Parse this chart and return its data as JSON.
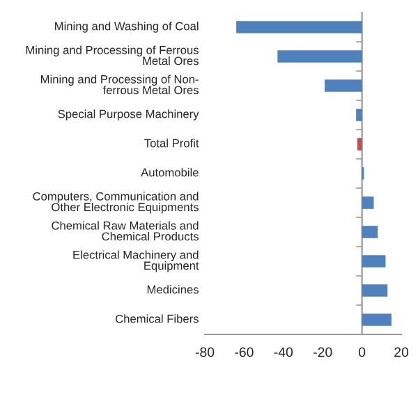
{
  "chart_data": {
    "type": "bar",
    "orientation": "horizontal",
    "categories": [
      "Mining and Washing of Coal",
      "Mining and Processing of Ferrous\nMetal Ores",
      "Mining and Processing of Non-\nferrous Metal Ores",
      "Special Purpose Machinery",
      "Total Profit",
      "Automobile",
      "Computers, Communication and\nOther Electronic Equipments",
      "Chemical Raw Materials and\nChemical Products",
      "Electrical Machinery and\nEquipment",
      "Medicines",
      "Chemical Fibers"
    ],
    "values": [
      -64,
      -43,
      -19,
      -3,
      -2.4,
      1,
      6,
      8,
      12,
      13,
      15
    ],
    "colors": [
      "#4f81bd",
      "#4f81bd",
      "#4f81bd",
      "#4f81bd",
      "#c0504d",
      "#4f81bd",
      "#4f81bd",
      "#4f81bd",
      "#4f81bd",
      "#4f81bd",
      "#4f81bd"
    ],
    "xlim": [
      -80,
      20
    ],
    "xticks": [
      -80,
      -60,
      -40,
      -20,
      0,
      20
    ]
  }
}
